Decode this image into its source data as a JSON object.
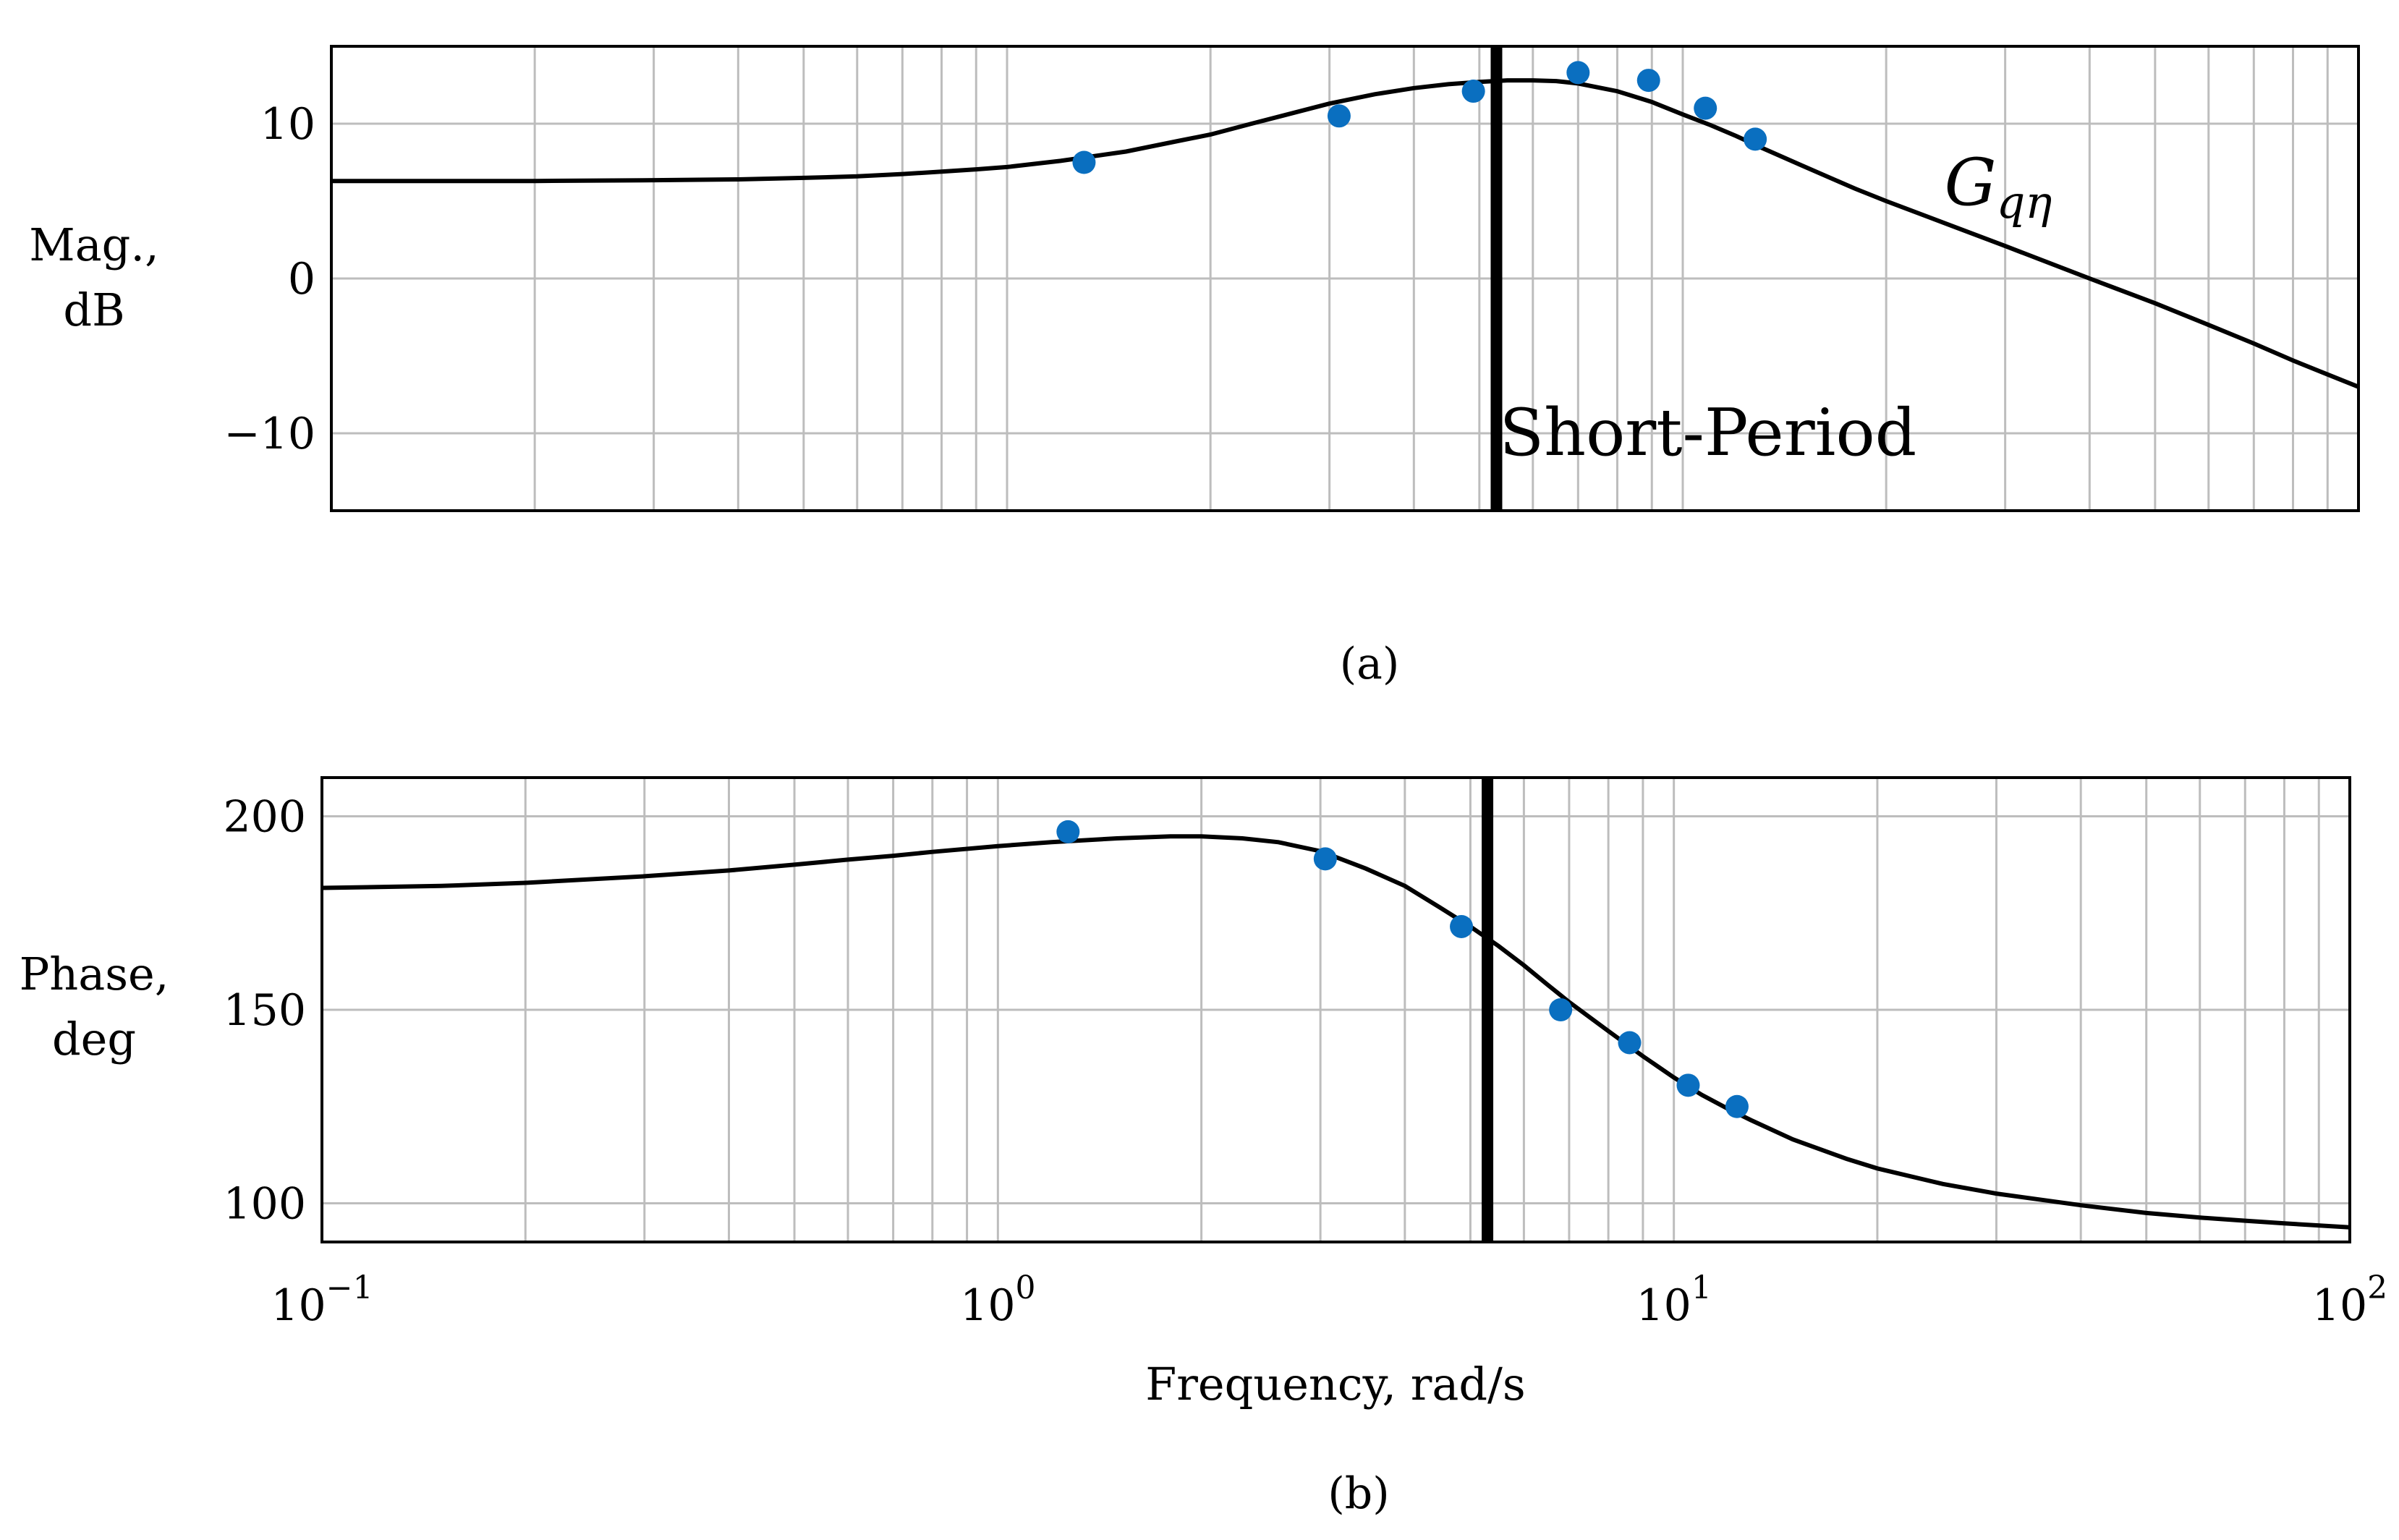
{
  "chart_data": [
    {
      "type": "line",
      "panel": "(a)",
      "ylabel_line1": "Mag.,",
      "ylabel_line2": "dB",
      "xscale": "log",
      "xlim": [
        0.1,
        100
      ],
      "ylim": [
        -15,
        15
      ],
      "yticks": [
        10,
        0,
        -10
      ],
      "ytick_labels": [
        "10",
        "0",
        "−10"
      ],
      "grid": true,
      "vertical_marker": {
        "x": 5.3,
        "label": "Short-Period"
      },
      "curve_label_main": "G",
      "curve_label_sub": "qη",
      "series": [
        {
          "kind": "line",
          "x": [
            0.1,
            0.15,
            0.2,
            0.3,
            0.4,
            0.5,
            0.6,
            0.7,
            0.8,
            0.9,
            1.0,
            1.2,
            1.5,
            1.8,
            2.0,
            2.3,
            2.6,
            3.0,
            3.5,
            4.0,
            4.5,
            5.0,
            5.5,
            6.0,
            6.5,
            7.0,
            8.0,
            9.0,
            10.0,
            11.0,
            12.0,
            13.0,
            15.0,
            18.0,
            20.0,
            25.0,
            30.0,
            40.0,
            50.0,
            60.0,
            70.0,
            80.0,
            90.0,
            100.0
          ],
          "y": [
            6.3,
            6.3,
            6.3,
            6.35,
            6.4,
            6.5,
            6.6,
            6.75,
            6.9,
            7.05,
            7.2,
            7.6,
            8.2,
            8.9,
            9.3,
            10.0,
            10.6,
            11.3,
            11.9,
            12.3,
            12.55,
            12.7,
            12.8,
            12.8,
            12.75,
            12.6,
            12.1,
            11.4,
            10.6,
            9.9,
            9.2,
            8.5,
            7.3,
            5.8,
            5.0,
            3.4,
            2.1,
            0.0,
            -1.6,
            -3.0,
            -4.2,
            -5.3,
            -6.2,
            -7.0
          ]
        },
        {
          "kind": "scatter",
          "x": [
            1.3,
            3.1,
            4.9,
            7.0,
            8.9,
            10.8,
            12.8
          ],
          "y": [
            7.5,
            10.5,
            12.1,
            13.3,
            12.8,
            11.0,
            9.0
          ]
        }
      ]
    },
    {
      "type": "line",
      "panel": "(b)",
      "xlabel": "Frequency, rad/s",
      "ylabel_line1": "Phase,",
      "ylabel_line2": "deg",
      "xscale": "log",
      "xlim": [
        0.1,
        100
      ],
      "ylim": [
        90,
        210
      ],
      "yticks": [
        200,
        150,
        100
      ],
      "ytick_labels": [
        "200",
        "150",
        "100"
      ],
      "xtick_base": "10",
      "xtick_exponents": [
        "−1",
        "0",
        "1",
        "2"
      ],
      "xtick_values": [
        0.1,
        1,
        10,
        100
      ],
      "grid": true,
      "vertical_marker": {
        "x": 5.3
      },
      "series": [
        {
          "kind": "line",
          "x": [
            0.1,
            0.15,
            0.2,
            0.3,
            0.4,
            0.5,
            0.6,
            0.7,
            0.8,
            1.0,
            1.2,
            1.5,
            1.8,
            2.0,
            2.3,
            2.6,
            3.0,
            3.5,
            4.0,
            4.5,
            5.0,
            5.5,
            6.0,
            6.5,
            7.0,
            8.0,
            9.0,
            10.0,
            11.0,
            12.0,
            13.0,
            15.0,
            18.0,
            20.0,
            25.0,
            30.0,
            40.0,
            50.0,
            60.0,
            70.0,
            80.0,
            100.0
          ],
          "y": [
            181.5,
            182.0,
            182.8,
            184.5,
            186.0,
            187.5,
            188.8,
            189.8,
            190.8,
            192.3,
            193.3,
            194.3,
            194.8,
            194.8,
            194.3,
            193.3,
            191.0,
            186.5,
            182.0,
            176.5,
            171.5,
            166.5,
            161.5,
            156.5,
            152.0,
            144.5,
            138.0,
            132.5,
            128.0,
            124.5,
            121.5,
            116.5,
            111.5,
            109.0,
            105.0,
            102.5,
            99.5,
            97.5,
            96.3,
            95.5,
            94.8,
            93.8
          ]
        },
        {
          "kind": "scatter",
          "x": [
            1.27,
            3.05,
            4.85,
            6.8,
            8.6,
            10.5,
            12.4
          ],
          "y": [
            196.0,
            189.0,
            171.5,
            150.0,
            141.5,
            130.5,
            125.0
          ]
        }
      ]
    }
  ]
}
